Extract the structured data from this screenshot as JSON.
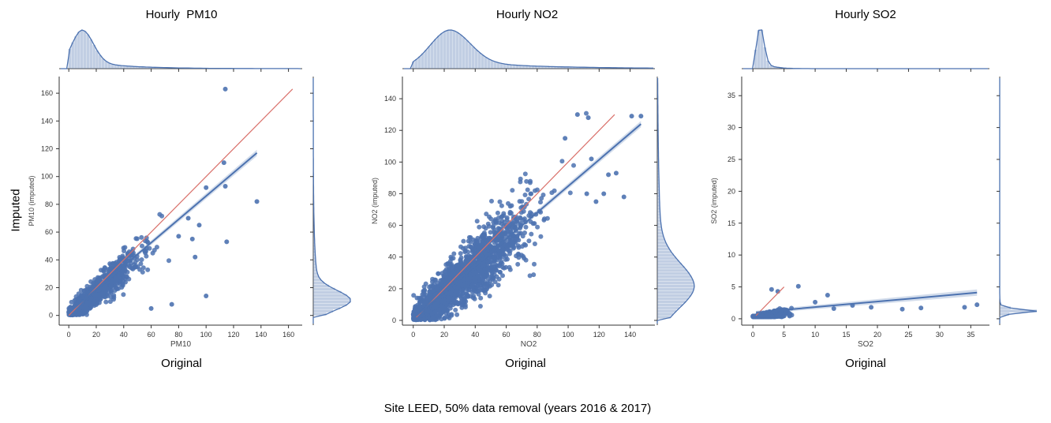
{
  "figure": {
    "caption": "Site LEED, 50% data removal (years 2016 & 2017)",
    "shared_ylabel": "Imputed",
    "shared_xlabel": "Original"
  },
  "colors": {
    "scatter": "#4c72b0",
    "identity_line": "#dd8452",
    "identity_line_alt": "#d9706a",
    "axis": "#333333"
  },
  "chart_data": [
    {
      "type": "scatter",
      "title": "Hourly  PM10",
      "xlabel": "PM10",
      "ylabel": "PM10 (imputed)",
      "xlim": [
        -7,
        170
      ],
      "ylim": [
        -7,
        172
      ],
      "xticks": [
        0,
        20,
        40,
        60,
        80,
        100,
        120,
        140,
        160
      ],
      "yticks": [
        0,
        20,
        40,
        60,
        80,
        100,
        120,
        140,
        160
      ],
      "identity_line": [
        [
          0,
          0
        ],
        [
          163,
          163
        ]
      ],
      "regression_line": [
        [
          0,
          2
        ],
        [
          137,
          117
        ]
      ],
      "cloud": {
        "x_center": 18,
        "spread": 16,
        "slope": 0.85,
        "noise": 7,
        "n": 900,
        "xmax": 80
      },
      "outliers": [
        [
          114,
          163
        ],
        [
          137,
          82
        ],
        [
          113,
          110
        ],
        [
          114,
          93
        ],
        [
          115,
          53
        ],
        [
          100,
          14
        ],
        [
          90,
          55
        ],
        [
          75,
          8
        ],
        [
          60,
          5
        ],
        [
          100,
          92
        ],
        [
          95,
          65
        ],
        [
          92,
          42
        ],
        [
          87,
          70
        ],
        [
          80,
          57
        ]
      ],
      "marginal_x": {
        "peak": 10,
        "width": 8,
        "tail": 30
      },
      "marginal_y": {
        "peak": 11,
        "width": 7,
        "tail": 25
      }
    },
    {
      "type": "scatter",
      "title": "Hourly NO2",
      "xlabel": "NO2",
      "ylabel": "NO2 (imputed)",
      "xlim": [
        -7,
        156
      ],
      "ylim": [
        -3,
        154
      ],
      "xticks": [
        0,
        20,
        40,
        60,
        80,
        100,
        120,
        140
      ],
      "yticks": [
        0,
        20,
        40,
        60,
        80,
        100,
        120,
        140
      ],
      "identity_line": [
        [
          2,
          2
        ],
        [
          130,
          130
        ]
      ],
      "regression_line": [
        [
          2,
          3
        ],
        [
          147,
          124
        ]
      ],
      "cloud": {
        "x_center": 32,
        "spread": 22,
        "slope": 0.85,
        "noise": 12,
        "n": 1800,
        "xmax": 115
      },
      "outliers": [
        [
          106,
          130
        ],
        [
          113,
          128
        ],
        [
          141,
          129
        ],
        [
          147,
          129
        ],
        [
          136,
          78
        ],
        [
          123,
          80
        ],
        [
          98,
          115
        ],
        [
          115,
          102
        ],
        [
          112,
          80
        ],
        [
          118,
          75
        ],
        [
          126,
          92
        ],
        [
          131,
          93
        ]
      ],
      "marginal_x": {
        "peak": 24,
        "width": 13,
        "tail": 50
      },
      "marginal_y": {
        "peak": 22,
        "width": 14,
        "tail": 45
      }
    },
    {
      "type": "scatter",
      "title": "Hourly SO2",
      "xlabel": "SO2",
      "ylabel": "SO2 (imputed)",
      "xlim": [
        -1.8,
        38
      ],
      "ylim": [
        -1,
        38
      ],
      "xticks": [
        0,
        5,
        10,
        15,
        20,
        25,
        30,
        35
      ],
      "yticks": [
        0,
        5,
        10,
        15,
        20,
        25,
        30,
        35
      ],
      "identity_line": [
        [
          0.5,
          0.5
        ],
        [
          5,
          5
        ]
      ],
      "regression_line": [
        [
          0.5,
          1
        ],
        [
          36,
          4.1
        ]
      ],
      "cloud": {
        "x_center": 2,
        "spread": 1.5,
        "slope": 0.18,
        "noise": 0.45,
        "n": 700,
        "xmax": 10
      },
      "outliers": [
        [
          7.3,
          5.1
        ],
        [
          12,
          3.7
        ],
        [
          19,
          1.8
        ],
        [
          27,
          1.7
        ],
        [
          34,
          1.8
        ],
        [
          36,
          2.2
        ],
        [
          24,
          1.5
        ],
        [
          16,
          2.1
        ],
        [
          13,
          1.6
        ],
        [
          10,
          2.6
        ],
        [
          3,
          4.6
        ],
        [
          4,
          4.3
        ]
      ],
      "marginal_x": {
        "peak": 1.2,
        "width": 0.6,
        "tail": 1.5
      },
      "marginal_y": {
        "peak": 1.2,
        "width": 0.3,
        "tail": 0.5
      }
    }
  ]
}
